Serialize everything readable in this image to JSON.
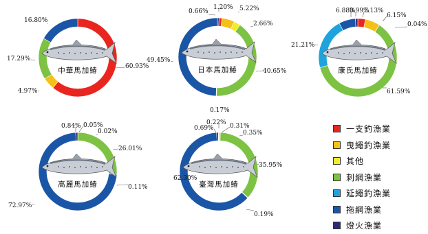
{
  "legend": [
    {
      "label": "一支釣漁業",
      "color": "#e8261f"
    },
    {
      "label": "曳繩釣漁業",
      "color": "#f5c018"
    },
    {
      "label": "其他",
      "color": "#f2ec2a"
    },
    {
      "label": "刺網漁業",
      "color": "#7dc242"
    },
    {
      "label": "延繩釣漁業",
      "color": "#1fa3dd"
    },
    {
      "label": "拖網漁業",
      "color": "#1b56a6"
    },
    {
      "label": "燈火漁業",
      "color": "#2e2a7a"
    }
  ],
  "chart_data": [
    {
      "type": "pie",
      "title": "中華馬加鰆",
      "categories": [
        "一支釣漁業",
        "曳繩釣漁業",
        "其他",
        "刺網漁業",
        "延繩釣漁業",
        "拖網漁業",
        "燈火漁業"
      ],
      "slices": [
        {
          "name": "一支釣漁業",
          "value": 60.93,
          "label": "60.93%"
        },
        {
          "name": "曳繩釣漁業",
          "value": 4.97,
          "label": "4.97%"
        },
        {
          "name": "刺網漁業",
          "value": 17.29,
          "label": "17.29%"
        },
        {
          "name": "拖網漁業",
          "value": 16.8,
          "label": "16.80%"
        }
      ]
    },
    {
      "type": "pie",
      "title": "日本馬加鰆",
      "slices": [
        {
          "name": "一支釣漁業",
          "value": 1.2,
          "label": "1.20%"
        },
        {
          "name": "曳繩釣漁業",
          "value": 5.22,
          "label": "5.22%"
        },
        {
          "name": "其他",
          "value": 2.66,
          "label": "2.66%"
        },
        {
          "name": "刺網漁業",
          "value": 40.65,
          "label": "40.65%"
        },
        {
          "name": "延繩釣漁業",
          "value": 0.17,
          "label": "0.17%"
        },
        {
          "name": "拖網漁業",
          "value": 49.45,
          "label": "49.45%"
        },
        {
          "name": "燈火漁業",
          "value": 0.66,
          "label": "0.66%"
        }
      ]
    },
    {
      "type": "pie",
      "title": "康氏馬加鰆",
      "slices": [
        {
          "name": "一支釣漁業",
          "value": 3.13,
          "label": "3.13%"
        },
        {
          "name": "曳繩釣漁業",
          "value": 6.15,
          "label": "6.15%"
        },
        {
          "name": "其他",
          "value": 0.04,
          "label": "0.04%"
        },
        {
          "name": "刺網漁業",
          "value": 61.59,
          "label": "61.59%"
        },
        {
          "name": "延繩釣漁業",
          "value": 21.21,
          "label": "21.21%"
        },
        {
          "name": "拖網漁業",
          "value": 6.88,
          "label": "6.88%"
        },
        {
          "name": "燈火漁業",
          "value": 0.99,
          "label": "0.99%"
        }
      ]
    },
    {
      "type": "pie",
      "title": "高麗馬加鰆",
      "slices": [
        {
          "name": "一支釣漁業",
          "value": 0.05,
          "label": "0.05%"
        },
        {
          "name": "曳繩釣漁業",
          "value": 0.02,
          "label": "0.02%"
        },
        {
          "name": "刺網漁業",
          "value": 26.01,
          "label": "26.01%"
        },
        {
          "name": "延繩釣漁業",
          "value": 0.11,
          "label": "0.11%"
        },
        {
          "name": "拖網漁業",
          "value": 72.97,
          "label": "72.97%"
        },
        {
          "name": "燈火漁業",
          "value": 0.84,
          "label": "0.84%"
        }
      ]
    },
    {
      "type": "pie",
      "title": "臺灣馬加鰆",
      "slices": [
        {
          "name": "一支釣漁業",
          "value": 0.31,
          "label": "0.31%"
        },
        {
          "name": "曳繩釣漁業",
          "value": 0.35,
          "label": "0.35%"
        },
        {
          "name": "刺網漁業",
          "value": 35.95,
          "label": "35.95%"
        },
        {
          "name": "延繩釣漁業",
          "value": 0.19,
          "label": "0.19%"
        },
        {
          "name": "拖網漁業",
          "value": 62.3,
          "label": "62.30%"
        },
        {
          "name": "燈火漁業",
          "value": 0.69,
          "label": "0.69%"
        },
        {
          "name": "其他",
          "value": 0.22,
          "label": "0.22%"
        }
      ]
    }
  ]
}
